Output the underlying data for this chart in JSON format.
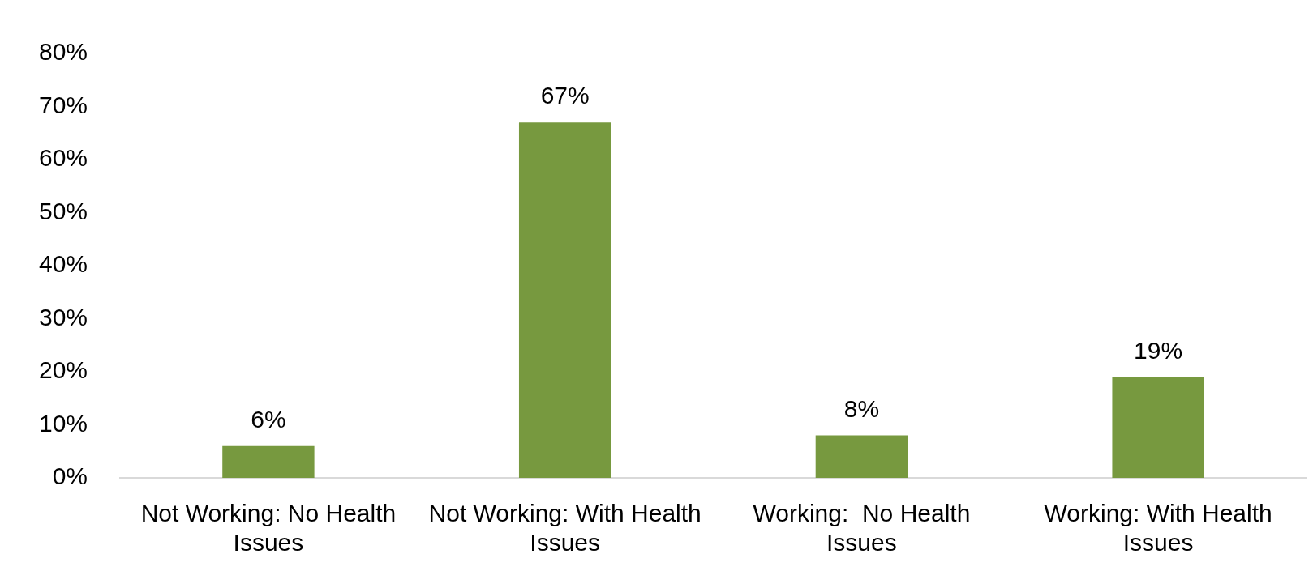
{
  "chart_data": {
    "type": "bar",
    "categories": [
      "Not Working: No Health Issues",
      "Not Working: With Health Issues",
      "Working:  No Health Issues",
      "Working: With Health Issues"
    ],
    "values": [
      6,
      67,
      8,
      19
    ],
    "color": "#77993f",
    "value_labels": [
      "6%",
      "67%",
      "8%",
      "19%"
    ],
    "ylim": [
      0,
      80
    ],
    "yticks": [
      {
        "value": 0,
        "label": "0%"
      },
      {
        "value": 10,
        "label": "10%"
      },
      {
        "value": 20,
        "label": "20%"
      },
      {
        "value": 30,
        "label": "30%"
      },
      {
        "value": 40,
        "label": "40%"
      },
      {
        "value": 50,
        "label": "50%"
      },
      {
        "value": 60,
        "label": "60%"
      },
      {
        "value": 70,
        "label": "70%"
      },
      {
        "value": 80,
        "label": "80%"
      }
    ],
    "grid": false,
    "legend": false
  }
}
